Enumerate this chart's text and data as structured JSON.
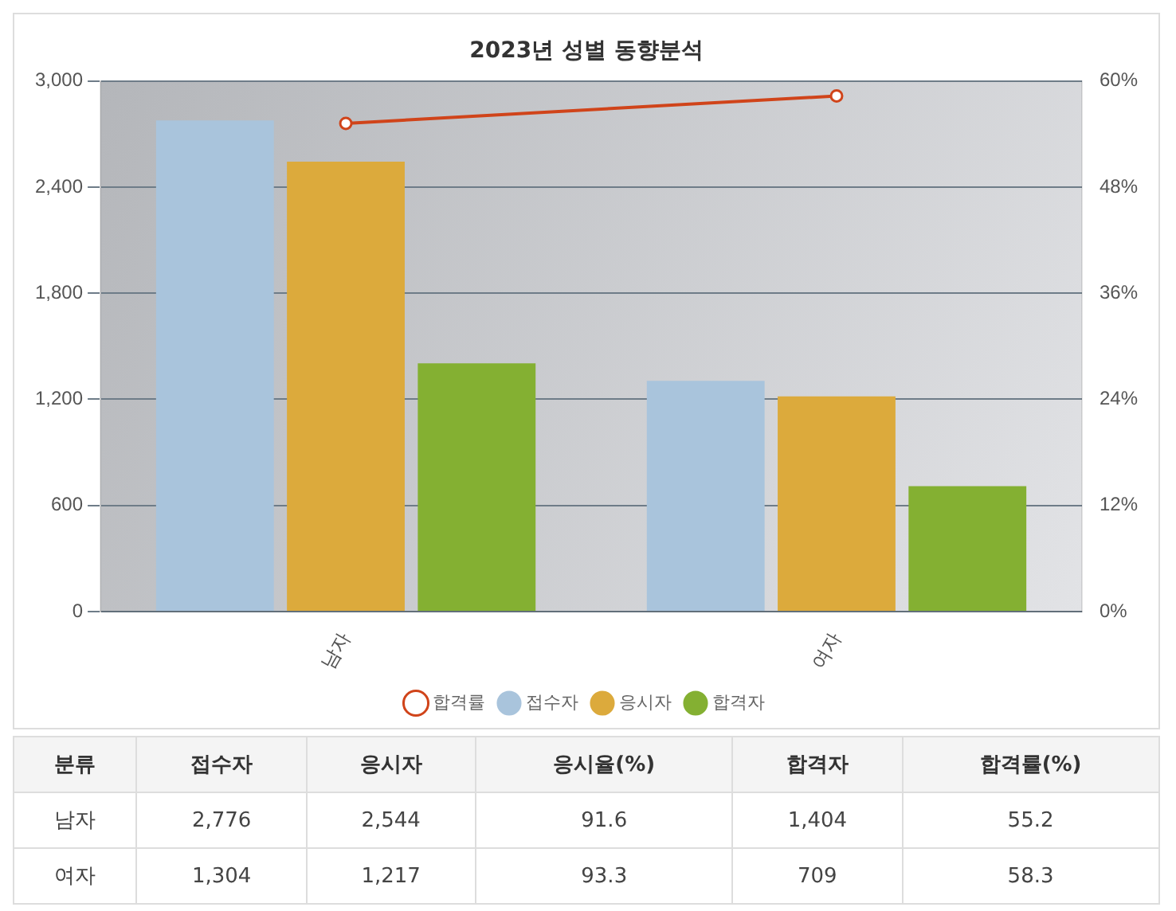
{
  "chart_data": [
    {
      "type": "bar",
      "title": "2023년 성별 동향분석",
      "categories": [
        "남자",
        "여자"
      ],
      "series": [
        {
          "name": "접수자",
          "color": "#a9c4dc",
          "values": [
            2776,
            1304
          ]
        },
        {
          "name": "응시자",
          "color": "#dcaa3c",
          "values": [
            2544,
            1217
          ]
        },
        {
          "name": "합격자",
          "color": "#84b032",
          "values": [
            1404,
            709
          ]
        },
        {
          "name": "합격률",
          "type": "line",
          "axis": "y2",
          "color": "#d0441a",
          "marker": "circle",
          "values": [
            55.2,
            58.3
          ]
        }
      ],
      "ylim": [
        0,
        3000
      ],
      "yticks": [
        {
          "value": 0,
          "label": "0"
        },
        {
          "value": 600,
          "label": "600"
        },
        {
          "value": 1200,
          "label": "1,200"
        },
        {
          "value": 1800,
          "label": "1,800"
        },
        {
          "value": 2400,
          "label": "2,400"
        },
        {
          "value": 3000,
          "label": "3,000"
        }
      ],
      "y2lim": [
        0,
        60
      ],
      "y2ticks": [
        {
          "value": 0,
          "label": "0%"
        },
        {
          "value": 12,
          "label": "12%"
        },
        {
          "value": 24,
          "label": "24%"
        },
        {
          "value": 36,
          "label": "36%"
        },
        {
          "value": 48,
          "label": "48%"
        },
        {
          "value": 60,
          "label": "60%"
        }
      ],
      "grid": "y",
      "legend": "bottom"
    },
    {
      "type": "other",
      "annotations": [
        "분류",
        "접수자",
        "응시자",
        "응시율(%)",
        "합격자",
        "합격률(%)",
        "남자",
        "2,776",
        "2,544",
        "91.6",
        "1,404",
        "55.2",
        "여자",
        "1,304",
        "1,217",
        "93.3",
        "709",
        "58.3"
      ]
    }
  ]
}
